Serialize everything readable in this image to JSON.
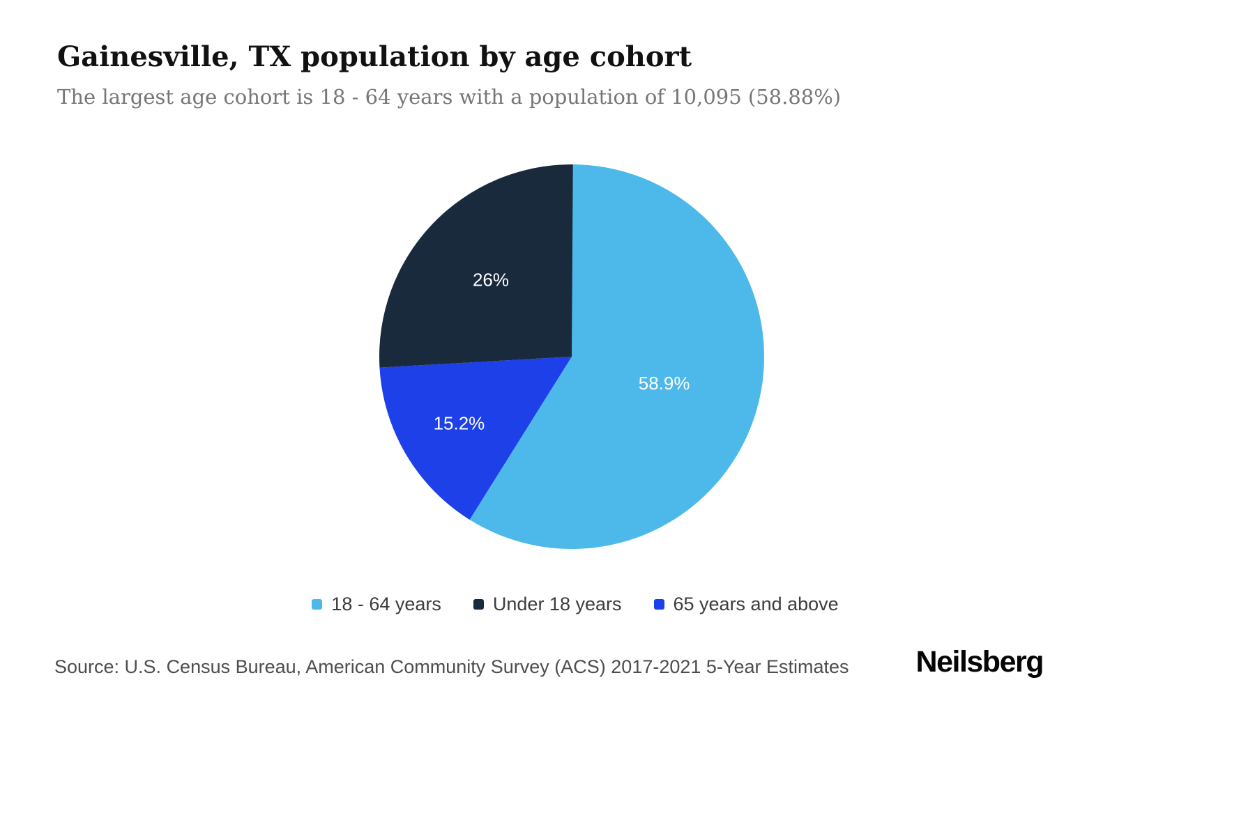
{
  "header": {
    "title": "Gainesville, TX population by age cohort",
    "subtitle": "The largest age cohort is 18 - 64 years with a population of 10,095 (58.88%)"
  },
  "chart_data": {
    "type": "pie",
    "title": "Gainesville, TX population by age cohort",
    "subtitle": "The largest age cohort is 18 - 64 years with a population of 10,095 (58.88%)",
    "slices": [
      {
        "label": "18 - 64 years",
        "pct": 58.9,
        "display": "58.9%",
        "color": "#4cb9ea",
        "label_r": 0.5
      },
      {
        "label": "Under 18 years",
        "pct": 26.0,
        "display": "26%",
        "color": "#192a3d",
        "label_r": 0.58
      },
      {
        "label": "65 years and above",
        "pct": 15.2,
        "display": "15.2%",
        "color": "#1d40e8",
        "label_r": 0.68
      }
    ],
    "draw_order": [
      0,
      2,
      1
    ],
    "start_angle_deg": 0,
    "direction": "clockwise",
    "legend_position": "bottom",
    "largest_cohort": {
      "label": "18 - 64 years",
      "population": "10,095",
      "pct_precise": "58.88%"
    }
  },
  "footer": {
    "source": "Source: U.S. Census Bureau, American Community Survey (ACS) 2017-2021 5-Year Estimates",
    "brand": "Neilsberg"
  }
}
